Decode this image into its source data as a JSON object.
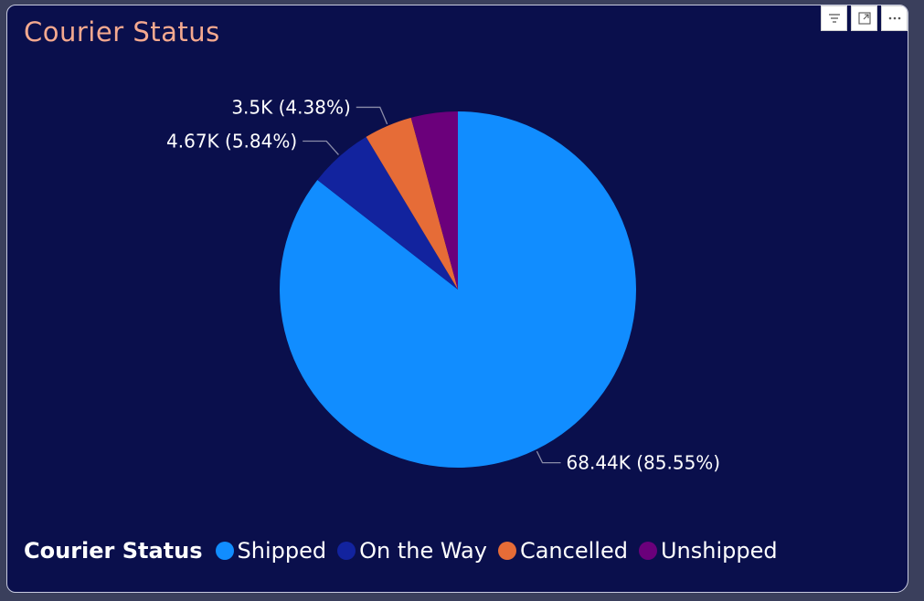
{
  "window": {
    "title": "Courier Status"
  },
  "toolbar": {
    "filter_icon": "filter-icon",
    "focus_icon": "focus-mode-icon",
    "more_icon": "more-options-icon"
  },
  "chart_data": {
    "type": "pie",
    "title": "Courier Status",
    "legend_title": "Courier Status",
    "legend_position": "bottom-left",
    "start_angle_deg": 0,
    "direction": "clockwise",
    "slices": [
      {
        "name": "Shipped",
        "value": 68440,
        "percent": 85.55,
        "label": "68.44K (85.55%)",
        "color": "#118dff"
      },
      {
        "name": "On the Way",
        "value": 4670,
        "percent": 5.84,
        "label": "4.67K (5.84%)",
        "color": "#12239e"
      },
      {
        "name": "Cancelled",
        "value": 3500,
        "percent": 4.38,
        "label": "3.5K (4.38%)",
        "color": "#e66c37"
      },
      {
        "name": "Unshipped",
        "value": 3390,
        "percent": 4.23,
        "label": "",
        "color": "#6b007b"
      }
    ]
  },
  "colors": {
    "background": "#0a0f4c",
    "title": "#f4a98f",
    "leader_line": "#8a8ca8"
  }
}
